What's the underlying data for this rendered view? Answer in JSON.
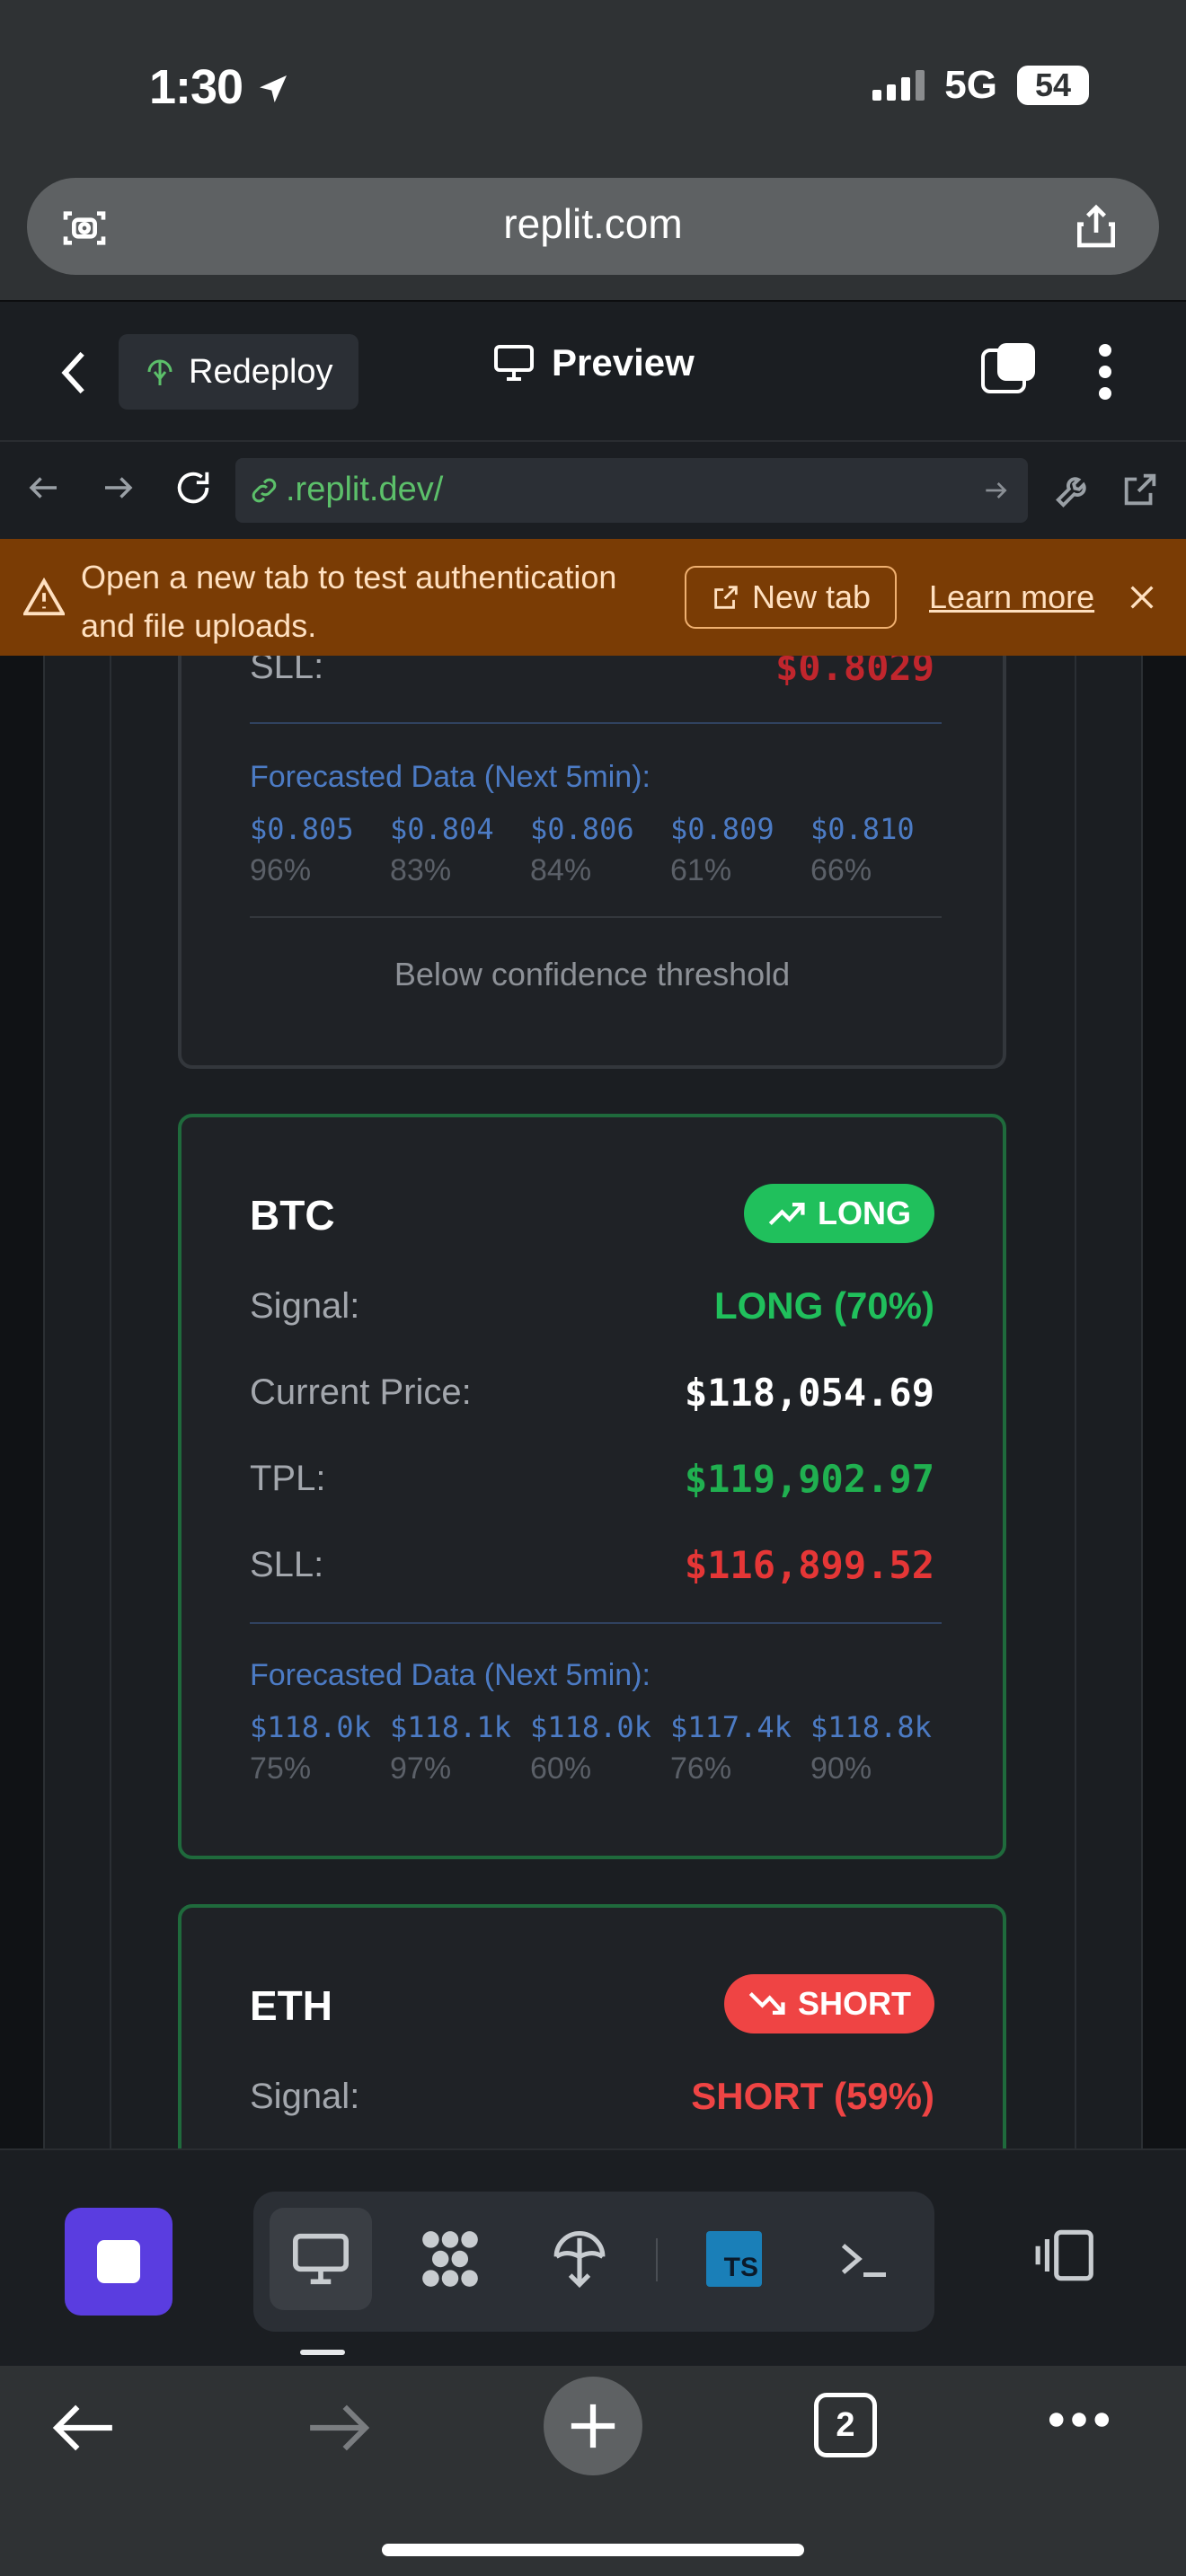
{
  "status_bar": {
    "time": "1:30",
    "network": "5G",
    "battery": "54"
  },
  "safari": {
    "url": "replit.com",
    "tab_count": "2"
  },
  "replit_bar": {
    "redeploy_label": "Redeploy",
    "preview_label": "Preview"
  },
  "browser": {
    "address": ".replit.dev/"
  },
  "warning": {
    "message": "Open a new tab to test authentication and file uploads.",
    "new_tab_label": "New tab",
    "learn_more_label": "Learn more"
  },
  "cards": [
    {
      "partial_label": "SLL:",
      "partial_value": "$0.8029",
      "forecast_title": "Forecasted Data (Next 5min):",
      "forecast": [
        {
          "price": "$0.805",
          "conf": "96%"
        },
        {
          "price": "$0.804",
          "conf": "83%"
        },
        {
          "price": "$0.806",
          "conf": "84%"
        },
        {
          "price": "$0.809",
          "conf": "61%"
        },
        {
          "price": "$0.810",
          "conf": "66%"
        }
      ],
      "note": "Below confidence threshold"
    },
    {
      "symbol": "BTC",
      "badge": "LONG",
      "signal_label": "Signal:",
      "signal_value": "LONG (70%)",
      "price_label": "Current Price:",
      "price_value": "$118,054.69",
      "tpl_label": "TPL:",
      "tpl_value": "$119,902.97",
      "sll_label": "SLL:",
      "sll_value": "$116,899.52",
      "forecast_title": "Forecasted Data (Next 5min):",
      "forecast": [
        {
          "price": "$118.0k",
          "conf": "75%"
        },
        {
          "price": "$118.1k",
          "conf": "97%"
        },
        {
          "price": "$118.0k",
          "conf": "60%"
        },
        {
          "price": "$117.4k",
          "conf": "76%"
        },
        {
          "price": "$118.8k",
          "conf": "90%"
        }
      ]
    },
    {
      "symbol": "ETH",
      "badge": "SHORT",
      "signal_label": "Signal:",
      "signal_value": "SHORT (59%)"
    }
  ],
  "bottom_nav": {
    "ts_label": "TS"
  },
  "colors": {
    "long": "#20c05c",
    "short": "#ef4444",
    "accent": "#5a3de0",
    "warning_bg": "#7a3c05"
  }
}
